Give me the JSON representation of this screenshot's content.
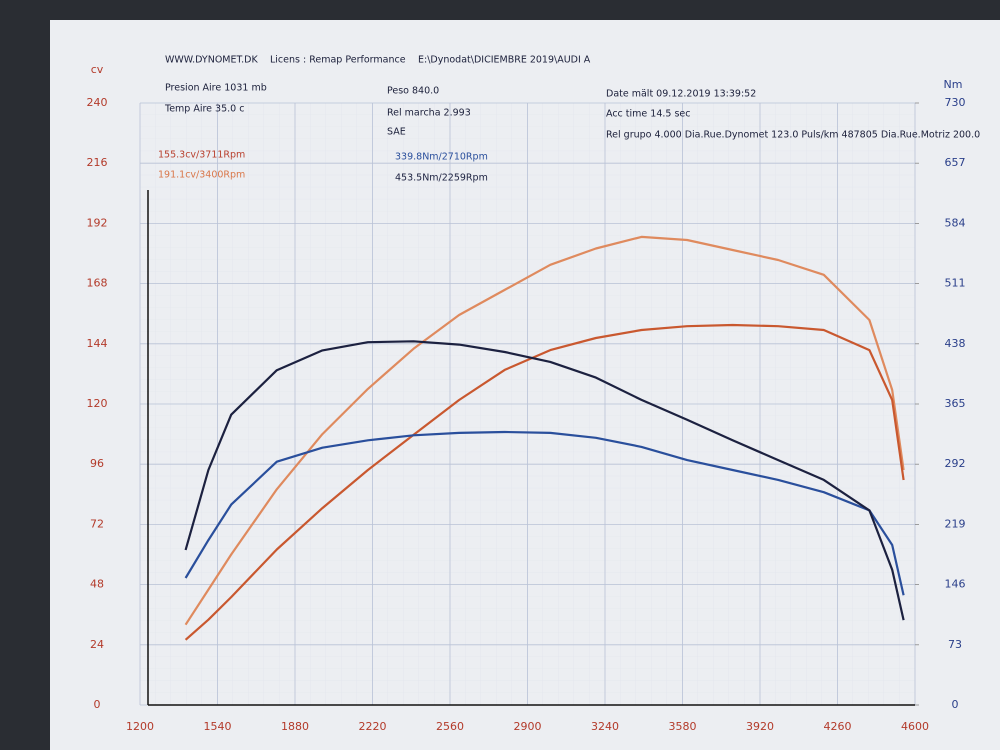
{
  "chart_data": {
    "type": "line",
    "y_label": "cv",
    "y2_label": "Nm",
    "annotations": [
      "WWW.DYNOMET.DK",
      "Licens :  Remap Performance",
      "E:\\Dynodat\\DICIEMBRE 2019\\AUDI A",
      "Presion Aire  1031 mb",
      "Temp Aire  35.0 c",
      "Peso      840.0",
      "Rel marcha 2.993",
      "SAE",
      "Date mält 09.12.2019 13:39:52",
      "Acc time   14.5 sec",
      "Rel grupo 4.000   Dia.Rue.Dynomet 123.0   Puls/km  487805   Dia.Rue.Motriz 200.0",
      "155.3cv/3711Rpm",
      "191.1cv/3400Rpm",
      "339.8Nm/2710Rpm",
      "453.5Nm/2259Rpm"
    ],
    "x": [
      1400,
      1500,
      1600,
      1800,
      2000,
      2200,
      2400,
      2600,
      2800,
      3000,
      3200,
      3400,
      3600,
      3800,
      4000,
      4200,
      4400,
      4500,
      4550
    ],
    "series": [
      {
        "color": "#df8a5e",
        "values": [
          32,
          46,
          60,
          86,
          108,
          126,
          142,
          155.5,
          165.5,
          175.5,
          182,
          186.6,
          185.4,
          181.4,
          177.4,
          171.5,
          153.5,
          125.6,
          93.7
        ]
      },
      {
        "color": "#c9582f",
        "values": [
          26,
          34,
          43,
          62,
          78.5,
          93.7,
          107.7,
          121.6,
          133.6,
          141.5,
          146.3,
          149.5,
          151,
          151.5,
          151,
          149.5,
          141.5,
          121.6,
          89.7
        ]
      },
      {
        "color": "#2a4f9c",
        "axis": "y2",
        "values": [
          154,
          200,
          243,
          295,
          312,
          321,
          327,
          330,
          331,
          330,
          324,
          313,
          297,
          285,
          273,
          258,
          236,
          194,
          133
        ]
      },
      {
        "color": "#1c2140",
        "axis": "y2",
        "values": [
          188,
          285,
          352,
          406,
          430,
          440,
          441,
          437,
          428,
          416,
          397,
          370,
          346,
          321,
          297,
          273,
          236,
          164,
          103
        ]
      }
    ],
    "xlim": [
      1200,
      4600
    ],
    "xticks": [
      1200,
      1540,
      1880,
      2220,
      2560,
      2900,
      3240,
      3580,
      3920,
      4260,
      4600
    ],
    "ylim": [
      0,
      240
    ],
    "yticks": [
      0,
      24,
      48,
      72,
      96,
      120,
      144,
      168,
      192,
      216,
      240
    ],
    "y2lim": [
      0,
      730
    ],
    "y2ticks": [
      0,
      73,
      146,
      219,
      292,
      365,
      438,
      511,
      584,
      657,
      730
    ],
    "grid": true
  }
}
